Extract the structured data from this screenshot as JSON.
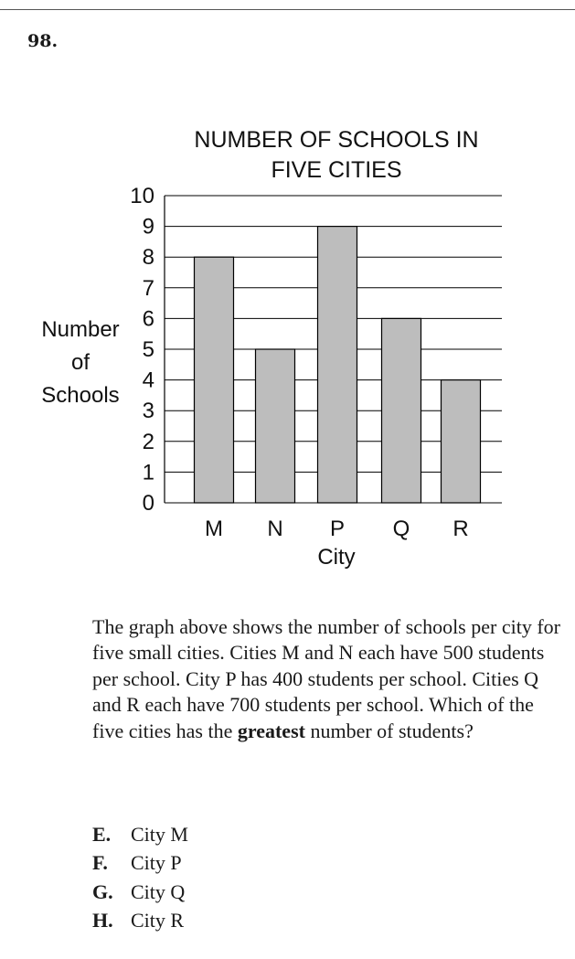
{
  "question": {
    "number": "98.",
    "text_before": "The graph above shows the number of schools per city for five small cities. Cities M and N each have 500 students per school. City P has 400 students per school. Cities Q and R each have 700 students per school. Which of the five cities has the ",
    "text_emphasis": "greatest",
    "text_after": " number of students?",
    "choices": [
      {
        "letter": "E.",
        "text": "City M"
      },
      {
        "letter": "F.",
        "text": "City P"
      },
      {
        "letter": "G.",
        "text": "City Q"
      },
      {
        "letter": "H.",
        "text": "City R"
      }
    ]
  },
  "chart_data": {
    "type": "bar",
    "title_lines": [
      "NUMBER OF SCHOOLS IN",
      "FIVE CITIES"
    ],
    "xlabel": "City",
    "ylabel_lines": [
      "Number",
      "of",
      "Schools"
    ],
    "categories": [
      "M",
      "N",
      "P",
      "Q",
      "R"
    ],
    "values": [
      8,
      5,
      9,
      6,
      4
    ],
    "ylim": [
      0,
      10
    ],
    "yticks": [
      "0",
      "1",
      "2",
      "3",
      "4",
      "5",
      "6",
      "7",
      "8",
      "9",
      "10"
    ],
    "grid": true,
    "bar_color": "#bdbdbd",
    "bar_edge_color": "#000000"
  }
}
